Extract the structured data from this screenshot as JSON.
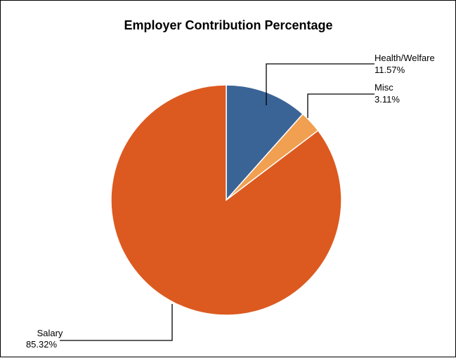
{
  "chart_data": {
    "type": "pie",
    "title": "Employer Contribution Percentage",
    "slices": [
      {
        "label": "Health/Welfare",
        "value": 11.57,
        "value_label": "11.57%",
        "color": "#3b6496"
      },
      {
        "label": "Misc",
        "value": 3.11,
        "value_label": "3.11%",
        "color": "#f0a050"
      },
      {
        "label": "Salary",
        "value": 85.32,
        "value_label": "85.32%",
        "color": "#dc5a20"
      }
    ],
    "start": "12 o'clock",
    "direction": "clockwise",
    "legend": "none",
    "data_labels": "outside with leader lines"
  }
}
